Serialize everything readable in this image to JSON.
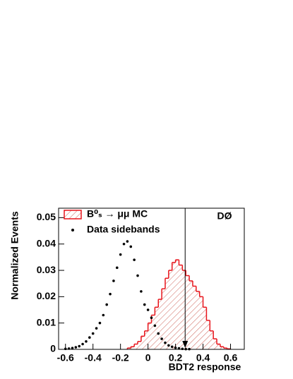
{
  "chart_data": {
    "type": "hist_points",
    "xlabel": "BDT2 response",
    "ylabel": "Normalized Events",
    "label": "DØ",
    "xlim": [
      -0.65,
      0.7
    ],
    "ylim": [
      0,
      0.0536
    ],
    "xticks": [
      -0.6,
      -0.4,
      -0.2,
      0,
      0.2,
      0.4,
      0.6
    ],
    "yticks": [
      0,
      0.01,
      0.02,
      0.03,
      0.04,
      0.05
    ],
    "cut_x": 0.27,
    "legend": "top-left",
    "series": [
      {
        "name": "B⁰ₛ → μμ MC",
        "color": "#e8141b",
        "kind": "hist",
        "bins": [
          -0.15,
          -0.125,
          -0.1,
          -0.075,
          -0.05,
          -0.025,
          0,
          0.025,
          0.05,
          0.075,
          0.1,
          0.125,
          0.15,
          0.175,
          0.2,
          0.225,
          0.25,
          0.275,
          0.3,
          0.325,
          0.35,
          0.375,
          0.4,
          0.425,
          0.45,
          0.475,
          0.5,
          0.525,
          0.55,
          0.575,
          0.6
        ],
        "values": [
          0.0005,
          0.001,
          0.002,
          0.003,
          0.005,
          0.007,
          0.01,
          0.013,
          0.016,
          0.019,
          0.023,
          0.027,
          0.03,
          0.033,
          0.034,
          0.032,
          0.03,
          0.028,
          0.026,
          0.024,
          0.022,
          0.02,
          0.016,
          0.011,
          0.007,
          0.004,
          0.002,
          0.001,
          0.0005,
          0.0002
        ]
      },
      {
        "name": "Data sidebands",
        "color": "#000000",
        "kind": "points",
        "x": [
          -0.6,
          -0.575,
          -0.55,
          -0.525,
          -0.5,
          -0.475,
          -0.45,
          -0.425,
          -0.4,
          -0.375,
          -0.35,
          -0.325,
          -0.3,
          -0.275,
          -0.25,
          -0.225,
          -0.2,
          -0.175,
          -0.15,
          -0.125,
          -0.1,
          -0.075,
          -0.05,
          -0.025,
          0,
          0.025,
          0.05,
          0.075,
          0.1,
          0.125,
          0.15,
          0.175,
          0.2,
          0.225,
          0.25,
          0.275,
          0.3
        ],
        "values": [
          0.0002,
          0.0003,
          0.0005,
          0.0008,
          0.0012,
          0.002,
          0.003,
          0.0045,
          0.006,
          0.008,
          0.01,
          0.013,
          0.017,
          0.021,
          0.026,
          0.031,
          0.036,
          0.04,
          0.041,
          0.039,
          0.034,
          0.028,
          0.022,
          0.017,
          0.015,
          0.012,
          0.009,
          0.006,
          0.004,
          0.0025,
          0.0015,
          0.001,
          0.0006,
          0.0004,
          0.0002,
          0.0001,
          0.0001
        ]
      }
    ]
  }
}
